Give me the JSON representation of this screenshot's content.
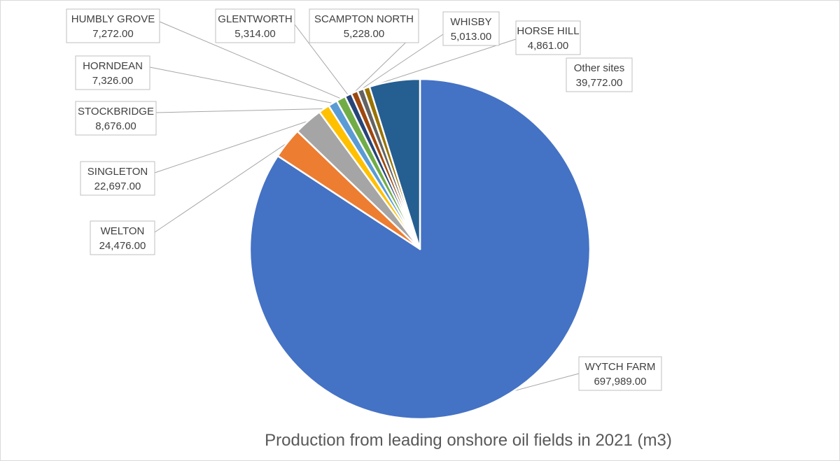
{
  "chart_data": {
    "type": "pie",
    "title": "Production from leading onshore oil fields in 2021  (m3)",
    "start_angle_deg": 0,
    "direction": "clockwise",
    "slices": [
      {
        "label": "WYTCH FARM",
        "value": 697989,
        "display": "697,989.00",
        "color": "#4472C4"
      },
      {
        "label": "WELTON",
        "value": 24476,
        "display": "24,476.00",
        "color": "#ED7D31"
      },
      {
        "label": "SINGLETON",
        "value": 22697,
        "display": "22,697.00",
        "color": "#A5A5A5"
      },
      {
        "label": "STOCKBRIDGE",
        "value": 8676,
        "display": "8,676.00",
        "color": "#FFC000"
      },
      {
        "label": "HORNDEAN",
        "value": 7326,
        "display": "7,326.00",
        "color": "#5B9BD5"
      },
      {
        "label": "HUMBLY GROVE",
        "value": 7272,
        "display": "7,272.00",
        "color": "#70AD47"
      },
      {
        "label": "GLENTWORTH",
        "value": 5314,
        "display": "5,314.00",
        "color": "#264478"
      },
      {
        "label": "SCAMPTON NORTH",
        "value": 5228,
        "display": "5,228.00",
        "color": "#9E480E"
      },
      {
        "label": "WHISBY",
        "value": 5013,
        "display": "5,013.00",
        "color": "#636363"
      },
      {
        "label": "HORSE HILL",
        "value": 4861,
        "display": "4,861.00",
        "color": "#997300"
      },
      {
        "label": "Other sites",
        "value": 39772,
        "display": "39,772.00",
        "color": "#255E91"
      }
    ]
  }
}
